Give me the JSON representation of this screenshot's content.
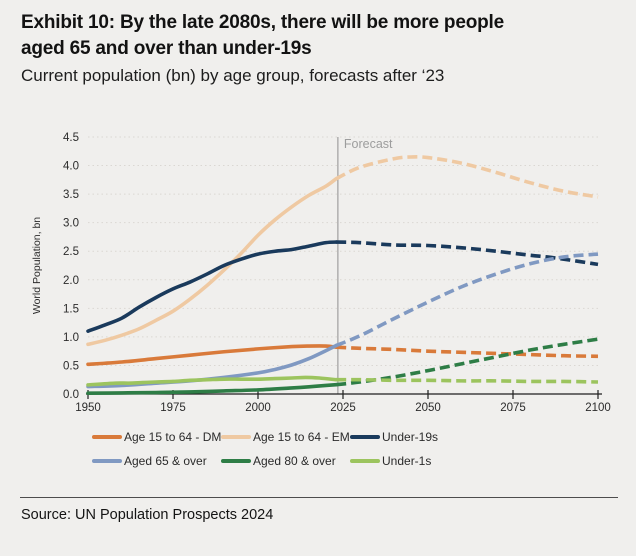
{
  "header": {
    "title_line1": "Exhibit 10: By the late 2080s, there will be more people",
    "title_line2": "aged 65 and over than under-19s",
    "subtitle": "Current population (bn) by age group, forecasts after ‘23"
  },
  "footer": {
    "source": "Source: UN Population Prospects 2024"
  },
  "chart_data": {
    "type": "line",
    "title": "Exhibit 10: By the late 2080s, there will be more people aged 65 and over than under-19s",
    "subtitle": "Current population (bn) by age group, forecasts after ‘23",
    "ylabel": "World Population, bn",
    "xlim": [
      1950,
      2100
    ],
    "ylim": [
      0,
      4.5
    ],
    "x_ticks": [
      "1950",
      "1975",
      "2000",
      "2025",
      "2050",
      "2075",
      "2100"
    ],
    "y_ticks": [
      "0.0",
      "0.5",
      "1.0",
      "1.5",
      "2.0",
      "2.5",
      "3.0",
      "3.5",
      "4.0",
      "4.5"
    ],
    "grid": "dotted-horizontal",
    "legend_position": "bottom",
    "forecast": {
      "year": 2023,
      "label": "Forecast",
      "line_color": "#8f8f8f",
      "label_color": "#9d9d9d"
    },
    "colors": {
      "background": "#f0efed",
      "gridline": "#dad7d2",
      "axis": "#1f1f1f",
      "tick_text": "#2b2b2b"
    },
    "series": [
      {
        "name": "Age 15 to 64 - DM",
        "color": "#d97a3a",
        "points": [
          [
            1950,
            0.52
          ],
          [
            1960,
            0.56
          ],
          [
            1970,
            0.62
          ],
          [
            1980,
            0.68
          ],
          [
            1990,
            0.74
          ],
          [
            2000,
            0.79
          ],
          [
            2010,
            0.83
          ],
          [
            2015,
            0.84
          ],
          [
            2020,
            0.84
          ],
          [
            2023,
            0.82
          ]
        ],
        "forecast_points": [
          [
            2023,
            0.82
          ],
          [
            2030,
            0.8
          ],
          [
            2040,
            0.78
          ],
          [
            2050,
            0.75
          ],
          [
            2060,
            0.73
          ],
          [
            2070,
            0.71
          ],
          [
            2080,
            0.69
          ],
          [
            2090,
            0.67
          ],
          [
            2100,
            0.66
          ]
        ]
      },
      {
        "name": "Age 15 to 64 - EM",
        "color": "#efc9a2",
        "points": [
          [
            1950,
            0.87
          ],
          [
            1955,
            0.94
          ],
          [
            1960,
            1.03
          ],
          [
            1965,
            1.14
          ],
          [
            1970,
            1.29
          ],
          [
            1975,
            1.45
          ],
          [
            1980,
            1.66
          ],
          [
            1985,
            1.9
          ],
          [
            1990,
            2.17
          ],
          [
            1995,
            2.46
          ],
          [
            2000,
            2.78
          ],
          [
            2005,
            3.05
          ],
          [
            2010,
            3.28
          ],
          [
            2015,
            3.48
          ],
          [
            2020,
            3.64
          ],
          [
            2023,
            3.77
          ]
        ],
        "forecast_points": [
          [
            2023,
            3.77
          ],
          [
            2030,
            3.97
          ],
          [
            2040,
            4.12
          ],
          [
            2045,
            4.15
          ],
          [
            2050,
            4.14
          ],
          [
            2060,
            4.04
          ],
          [
            2070,
            3.88
          ],
          [
            2080,
            3.7
          ],
          [
            2090,
            3.55
          ],
          [
            2100,
            3.45
          ]
        ]
      },
      {
        "name": "Under-19s",
        "color": "#1a3a5c",
        "points": [
          [
            1950,
            1.1
          ],
          [
            1955,
            1.21
          ],
          [
            1960,
            1.33
          ],
          [
            1965,
            1.52
          ],
          [
            1970,
            1.69
          ],
          [
            1975,
            1.84
          ],
          [
            1980,
            1.96
          ],
          [
            1985,
            2.1
          ],
          [
            1990,
            2.25
          ],
          [
            1995,
            2.36
          ],
          [
            2000,
            2.45
          ],
          [
            2005,
            2.5
          ],
          [
            2010,
            2.53
          ],
          [
            2015,
            2.59
          ],
          [
            2020,
            2.65
          ],
          [
            2023,
            2.66
          ]
        ],
        "forecast_points": [
          [
            2023,
            2.66
          ],
          [
            2030,
            2.65
          ],
          [
            2040,
            2.61
          ],
          [
            2050,
            2.6
          ],
          [
            2060,
            2.56
          ],
          [
            2070,
            2.5
          ],
          [
            2080,
            2.43
          ],
          [
            2085,
            2.4
          ],
          [
            2090,
            2.36
          ],
          [
            2100,
            2.27
          ]
        ]
      },
      {
        "name": "Aged 65 & over",
        "color": "#8099c2",
        "points": [
          [
            1950,
            0.13
          ],
          [
            1960,
            0.15
          ],
          [
            1970,
            0.19
          ],
          [
            1980,
            0.23
          ],
          [
            1990,
            0.29
          ],
          [
            2000,
            0.37
          ],
          [
            2005,
            0.43
          ],
          [
            2010,
            0.51
          ],
          [
            2015,
            0.62
          ],
          [
            2020,
            0.76
          ],
          [
            2023,
            0.85
          ]
        ],
        "forecast_points": [
          [
            2023,
            0.85
          ],
          [
            2030,
            1.02
          ],
          [
            2040,
            1.32
          ],
          [
            2050,
            1.61
          ],
          [
            2060,
            1.88
          ],
          [
            2070,
            2.1
          ],
          [
            2080,
            2.28
          ],
          [
            2090,
            2.4
          ],
          [
            2100,
            2.45
          ]
        ]
      },
      {
        "name": "Aged 80 & over",
        "color": "#2e7d46",
        "points": [
          [
            1950,
            0.014
          ],
          [
            1960,
            0.019
          ],
          [
            1970,
            0.026
          ],
          [
            1980,
            0.036
          ],
          [
            1990,
            0.054
          ],
          [
            2000,
            0.072
          ],
          [
            2010,
            0.106
          ],
          [
            2015,
            0.126
          ],
          [
            2020,
            0.15
          ],
          [
            2023,
            0.163
          ]
        ],
        "forecast_points": [
          [
            2023,
            0.163
          ],
          [
            2030,
            0.21
          ],
          [
            2040,
            0.3
          ],
          [
            2050,
            0.41
          ],
          [
            2060,
            0.53
          ],
          [
            2070,
            0.65
          ],
          [
            2080,
            0.77
          ],
          [
            2090,
            0.87
          ],
          [
            2100,
            0.96
          ]
        ]
      },
      {
        "name": "Under-1s",
        "color": "#9cc45e",
        "points": [
          [
            1950,
            0.16
          ],
          [
            1958,
            0.19
          ],
          [
            1962,
            0.19
          ],
          [
            1966,
            0.2
          ],
          [
            1970,
            0.21
          ],
          [
            1975,
            0.22
          ],
          [
            1980,
            0.24
          ],
          [
            1985,
            0.25
          ],
          [
            1990,
            0.26
          ],
          [
            1995,
            0.26
          ],
          [
            2000,
            0.26
          ],
          [
            2005,
            0.27
          ],
          [
            2010,
            0.28
          ],
          [
            2014,
            0.29
          ],
          [
            2018,
            0.28
          ],
          [
            2023,
            0.25
          ]
        ],
        "forecast_points": [
          [
            2023,
            0.25
          ],
          [
            2030,
            0.25
          ],
          [
            2040,
            0.24
          ],
          [
            2050,
            0.24
          ],
          [
            2060,
            0.23
          ],
          [
            2070,
            0.23
          ],
          [
            2080,
            0.22
          ],
          [
            2090,
            0.22
          ],
          [
            2100,
            0.21
          ]
        ]
      }
    ]
  }
}
